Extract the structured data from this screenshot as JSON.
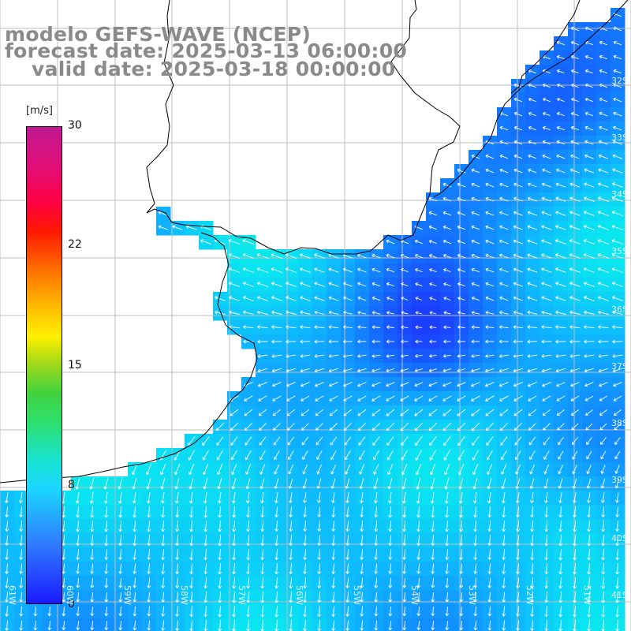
{
  "header": {
    "model": "modelo GEFS-WAVE (NCEP)",
    "forecast": "forecast date: 2025-03-13 06:00:00",
    "valid": "valid date: 2025-03-18 00:00:00"
  },
  "colorbar": {
    "unit": "[m/s]",
    "ticks": [
      "30",
      "22",
      "15",
      "8",
      "0"
    ]
  },
  "lat_labels": [
    "32S",
    "33S",
    "34S",
    "35S",
    "36S",
    "37S",
    "38S",
    "39S",
    "40S",
    "41S"
  ],
  "lon_labels": [
    "61W",
    "60W",
    "59W",
    "58W",
    "57W",
    "56W",
    "55W",
    "54W",
    "53W",
    "52W",
    "51W"
  ],
  "colors": {
    "land": "#ffffff",
    "grid": "#bdbdbd",
    "coast": "#000000",
    "arrows": "#ffffff",
    "header_text": "#8a8a8a"
  }
}
